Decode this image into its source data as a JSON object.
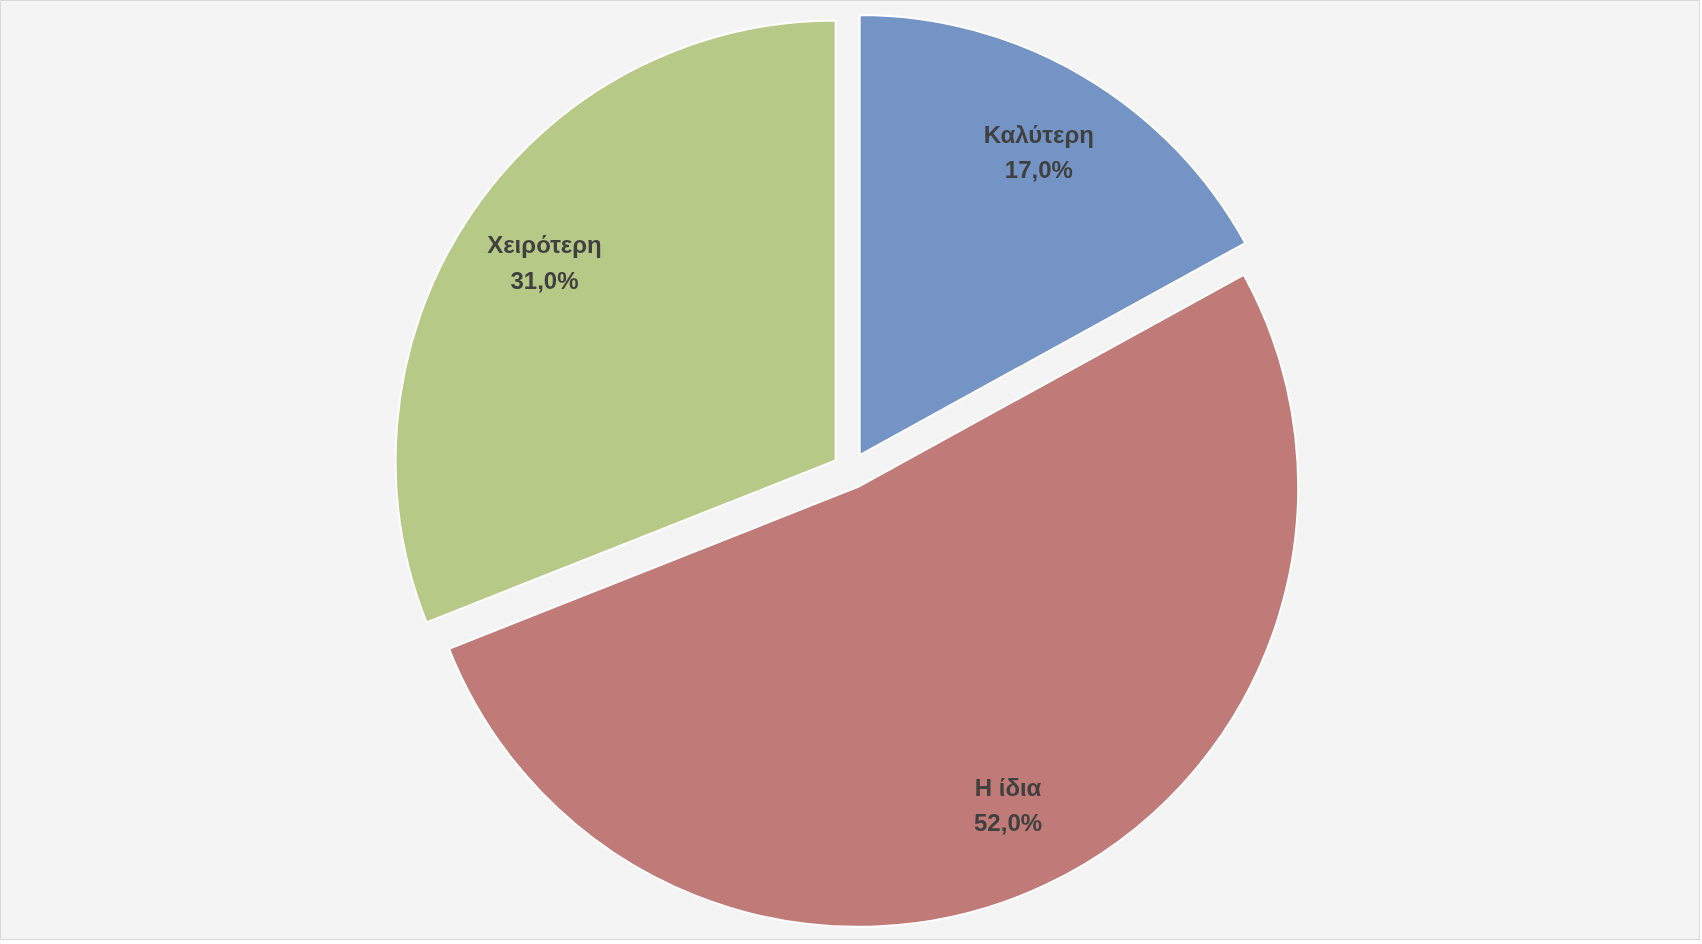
{
  "chart_data": {
    "type": "pie",
    "categories": [
      "Καλύτερη",
      "Η ίδια",
      "Χειρότερη"
    ],
    "values": [
      17.0,
      52.0,
      31.0
    ],
    "colors": [
      "#7594c6",
      "#c07a77",
      "#b7c986"
    ],
    "value_labels": [
      "17,0%",
      "52,0%",
      "31,0%"
    ]
  }
}
